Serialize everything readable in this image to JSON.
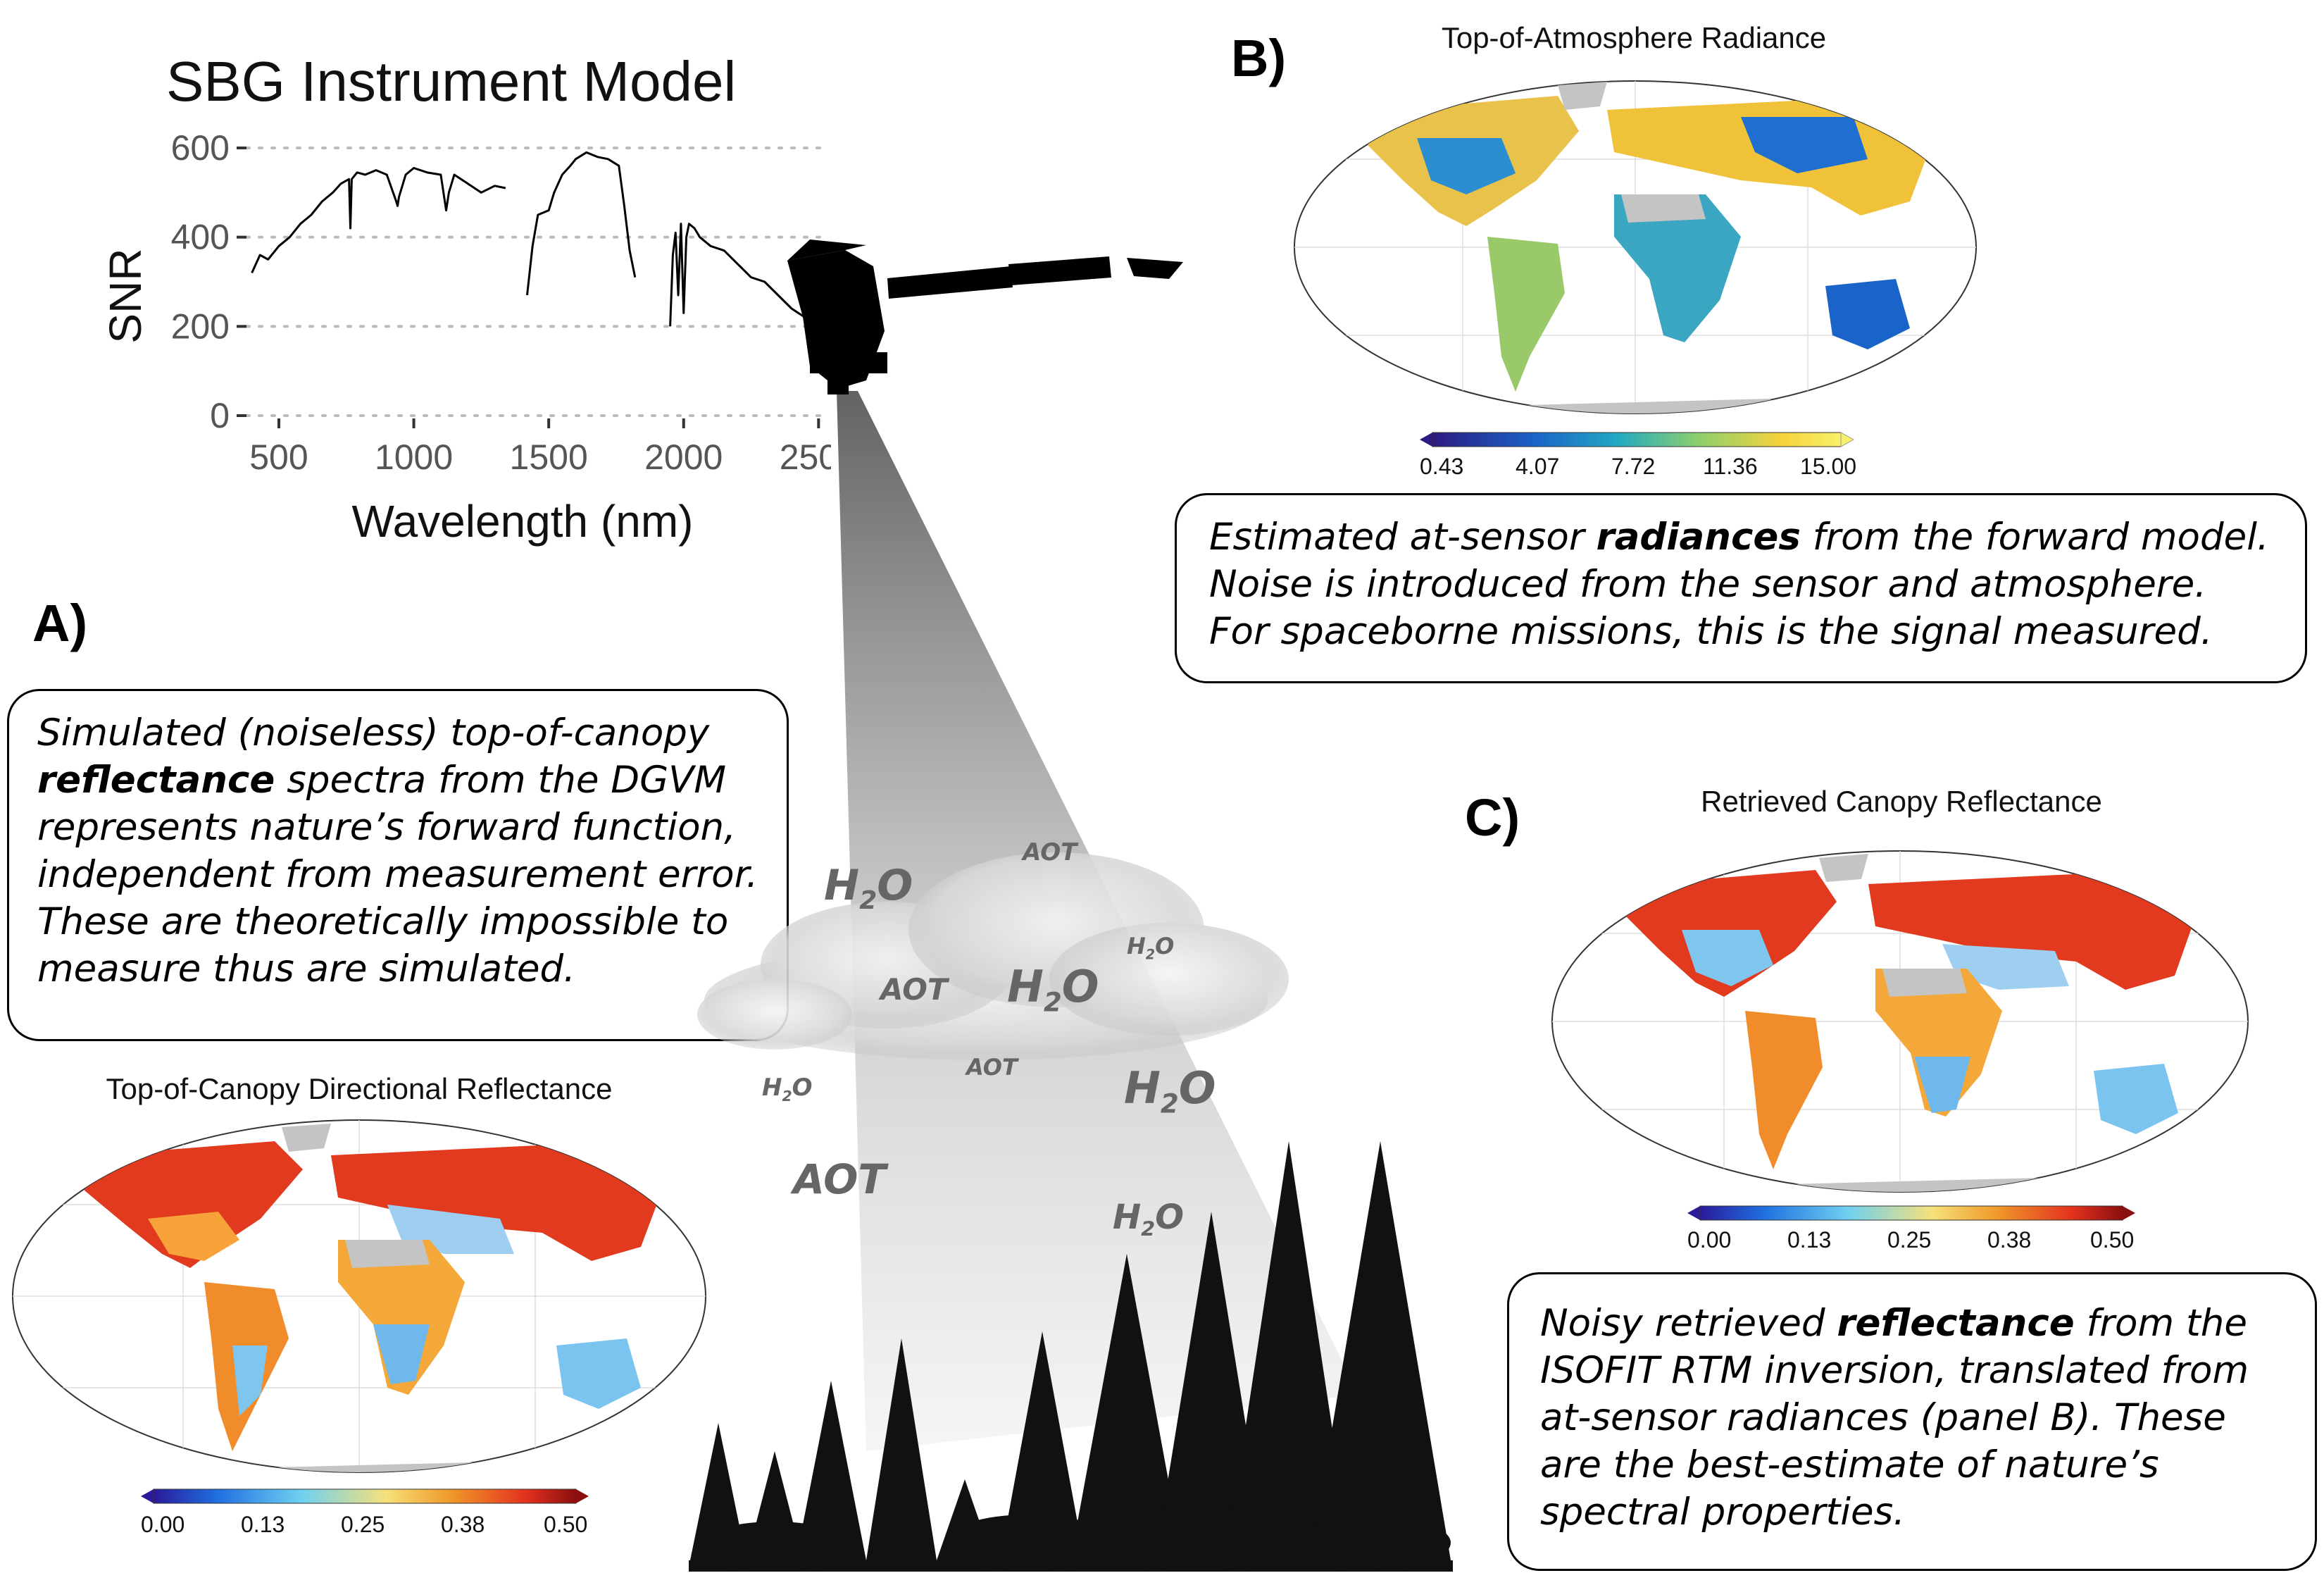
{
  "snr_chart": {
    "chart_data": {
      "type": "line",
      "title": "SBG Instrument Model",
      "xlabel": "Wavelength (nm)",
      "ylabel": "SNR",
      "xlim": [
        380,
        2520
      ],
      "ylim": [
        0,
        600
      ],
      "x_ticks": [
        "500",
        "1000",
        "1500",
        "2000",
        "2500"
      ],
      "y_ticks": [
        "0",
        "200",
        "400",
        "600"
      ],
      "grid": "horizontal dotted",
      "series": [
        {
          "x": [
            400,
            430,
            460,
            500,
            540,
            580,
            620,
            660,
            700,
            730,
            760,
            765,
            770,
            790,
            820,
            860,
            900,
            935,
            940,
            945,
            970,
            1000,
            1050,
            1100,
            1120,
            1130,
            1150,
            1200,
            1250,
            1300,
            1340
          ],
          "y": [
            320,
            360,
            350,
            380,
            400,
            430,
            450,
            480,
            500,
            520,
            530,
            420,
            530,
            545,
            540,
            550,
            540,
            480,
            470,
            490,
            540,
            555,
            545,
            540,
            460,
            500,
            540,
            520,
            500,
            515,
            510
          ]
        },
        {
          "x": [
            1420,
            1440,
            1460,
            1500,
            1520,
            1550,
            1580,
            1600,
            1640,
            1680,
            1720,
            1760,
            1780,
            1800,
            1820
          ],
          "y": [
            270,
            380,
            450,
            460,
            500,
            540,
            560,
            575,
            590,
            580,
            575,
            560,
            470,
            370,
            310
          ]
        },
        {
          "x": [
            1950,
            1960,
            1970,
            1980,
            1990,
            2000,
            2010,
            2020,
            2040,
            2060,
            2100,
            2150,
            2200,
            2250,
            2300,
            2350,
            2400,
            2450,
            2480,
            2500
          ],
          "y": [
            200,
            360,
            410,
            270,
            430,
            230,
            400,
            430,
            420,
            400,
            380,
            370,
            340,
            310,
            300,
            270,
            240,
            220,
            200,
            160
          ]
        }
      ]
    }
  },
  "panel_a": {
    "letter": "A)",
    "callout_pre": "Simulated (noiseless) top-of-canopy ",
    "callout_bold": "reflectance",
    "callout_post": " spectra from the DGVM represents nature’s forward function, independent from measurement error. These are theoretically impossible to measure thus are simulated.",
    "map_title": "Top-of-Canopy Directional Reflectance",
    "colorbar": {
      "ticks": [
        "0.00",
        "0.13",
        "0.25",
        "0.38",
        "0.50"
      ],
      "palette": "blue-to-red"
    }
  },
  "panel_b": {
    "letter": "B)",
    "map_title": "Top-of-Atmosphere Radiance",
    "callout_pre": "Estimated at-sensor ",
    "callout_bold": "radiances",
    "callout_post": " from the forward model. Noise is introduced from the sensor and atmosphere. For spaceborne missions, this is the signal measured.",
    "colorbar": {
      "ticks": [
        "0.43",
        "4.07",
        "7.72",
        "11.36",
        "15.00"
      ],
      "palette": "blue-to-yellow"
    }
  },
  "panel_c": {
    "letter": "C)",
    "map_title": "Retrieved Canopy Reflectance",
    "callout_pre": "Noisy retrieved ",
    "callout_bold": "reflectance",
    "callout_post": " from the ISOFIT RTM inversion, translated from at-sensor radiances (panel B). These are the best-estimate of nature’s spectral properties.",
    "colorbar": {
      "ticks": [
        "0.00",
        "0.13",
        "0.25",
        "0.38",
        "0.50"
      ],
      "palette": "blue-to-red"
    }
  },
  "atmosphere": {
    "h2o": "H",
    "h2o_sub": "2",
    "h2o_o": "O",
    "aot": "AOT"
  },
  "colors": {
    "reflectance_palette": [
      "#2b1a9a",
      "#1f6fe0",
      "#6fd0f0",
      "#f6e17a",
      "#f09a2a",
      "#e3321e",
      "#8a0f0f"
    ],
    "radiance_palette": [
      "#2c1a80",
      "#1a63c8",
      "#22a8c2",
      "#8ccf6e",
      "#f4d23c",
      "#f8f06a"
    ],
    "land_gray": "#c4c4c4"
  }
}
